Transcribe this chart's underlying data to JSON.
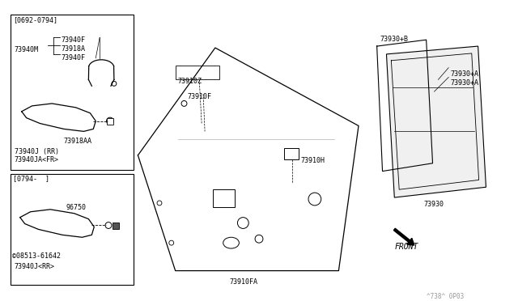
{
  "bg_color": "#ffffff",
  "line_color": "#000000",
  "text_color": "#000000",
  "gray_color": "#999999",
  "box1_label": "[0692-0794]",
  "box2_label": "[0794-  ]",
  "label_73940F": "73940F",
  "label_73918A": "73918A",
  "label_73940M": "73940M",
  "label_73918AA": "73918AA",
  "label_73940J_RR": "73940J (RR)",
  "label_73940JA_FR": "73940JA<FR>",
  "label_96750": "96750",
  "label_08513": "©08513-61642",
  "label_73940J_RR2": "73940J<RR>",
  "label_73910Z": "73910Z",
  "label_73910F": "73910F",
  "label_73910H": "73910H",
  "label_73910FA": "73910FA",
  "label_73930pB": "73930+B",
  "label_73930pA": "73930+A",
  "label_73930": "73930",
  "label_FRONT": "FRONT",
  "diagram_code": "^738^ 0P03"
}
